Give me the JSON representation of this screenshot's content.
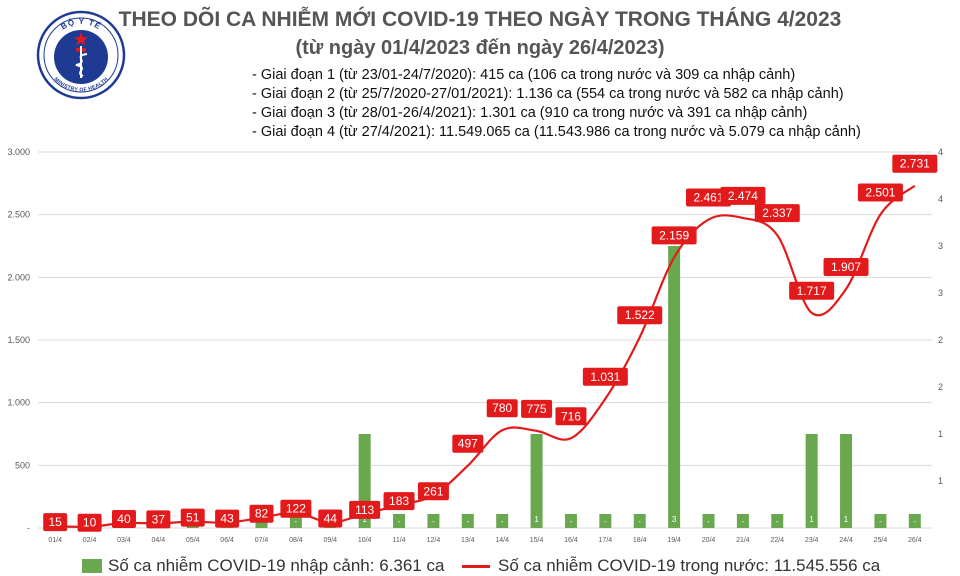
{
  "header": {
    "title": "THEO DÕI CA NHIỄM MỚI COVID-19 THEO NGÀY TRONG THÁNG 4/2023",
    "subtitle": "(từ ngày 01/4/2023 đến ngày 26/4/2023)",
    "notes": [
      "- Giai đoạn 1 (từ 23/01-24/7/2020): 415 ca (106 ca trong nước và 309 ca nhập cảnh)",
      "- Giai đoạn 2 (từ 25/7/2020-27/01/2021): 1.136 ca (554 ca trong nước và 582 ca nhập cảnh)",
      "- Giai đoạn 3 (từ 28/01-26/4/2021): 1.301 ca (910 ca trong nước và 391 ca nhập cảnh)",
      "- Giai đoạn 4 (từ 27/4/2021): 11.549.065 ca (11.543.986 ca trong nước và 5.079 ca nhập cảnh)"
    ]
  },
  "logo": {
    "top_text": "BỘ Y TẾ",
    "bottom_text": "MINISTRY OF HEALTH",
    "colors": {
      "ring": "#1f3a93",
      "star": "#e31a1c",
      "cross": "#e31a1c"
    }
  },
  "legend": {
    "bar_label": "Số ca nhiễm COVID-19 nhập cảnh: 6.361 ca",
    "line_label": "Số ca nhiễm COVID-19 trong nước: 11.545.556 ca"
  },
  "colors": {
    "bar": "#6aa84f",
    "line": "#e31a1c",
    "grid": "#d9d9d9",
    "axis_text": "#595959"
  },
  "chart_data": {
    "type": "bar+line",
    "categories": [
      "01/4",
      "02/4",
      "03/4",
      "04/4",
      "05/4",
      "06/4",
      "07/4",
      "08/4",
      "09/4",
      "10/4",
      "11/4",
      "12/4",
      "13/4",
      "14/4",
      "15/4",
      "16/4",
      "17/4",
      "18/4",
      "19/4",
      "20/4",
      "21/4",
      "22/4",
      "23/4",
      "24/4",
      "25/4",
      "26/4"
    ],
    "y_left": {
      "ticks": [
        "-",
        "500",
        "1.000",
        "1.500",
        "2.000",
        "2.500",
        "3.000"
      ],
      "range": [
        0,
        3000
      ]
    },
    "y_right": {
      "ticks": [
        "1",
        "1",
        "2",
        "2",
        "3",
        "3",
        "4",
        "4"
      ],
      "range": [
        0,
        4
      ]
    },
    "series": [
      {
        "name": "Số ca nhiễm COVID-19 nhập cảnh",
        "type": "bar",
        "axis": "right",
        "values": [
          0,
          0,
          0,
          0,
          0,
          0,
          0,
          0,
          0,
          1,
          0,
          0,
          0,
          0,
          1,
          0,
          0,
          0,
          3,
          0,
          0,
          0,
          1,
          1,
          0,
          0
        ],
        "labels": [
          "-",
          "-",
          "-",
          "-",
          "-",
          "-",
          "-",
          "-",
          "-",
          "1",
          "-",
          "-",
          "-",
          "-",
          "1",
          "-",
          "-",
          "-",
          "3",
          "-",
          "-",
          "-",
          "1",
          "1",
          "-",
          "-"
        ]
      },
      {
        "name": "Số ca nhiễm COVID-19 trong nước",
        "type": "line",
        "axis": "left",
        "values": [
          15,
          10,
          40,
          37,
          51,
          43,
          82,
          122,
          44,
          113,
          183,
          261,
          497,
          780,
          775,
          716,
          1031,
          1522,
          2159,
          2461,
          2474,
          2337,
          1717,
          1907,
          2501,
          2731
        ],
        "labels": [
          "15",
          "10",
          "40",
          "37",
          "51",
          "43",
          "82",
          "122",
          "44",
          "113",
          "183",
          "261",
          "497",
          "780",
          "775",
          "716",
          "1.031",
          "1.522",
          "2.159",
          "2.461",
          "2.474",
          "2.337",
          "1.717",
          "1.907",
          "2.501",
          "2.731"
        ]
      }
    ]
  }
}
